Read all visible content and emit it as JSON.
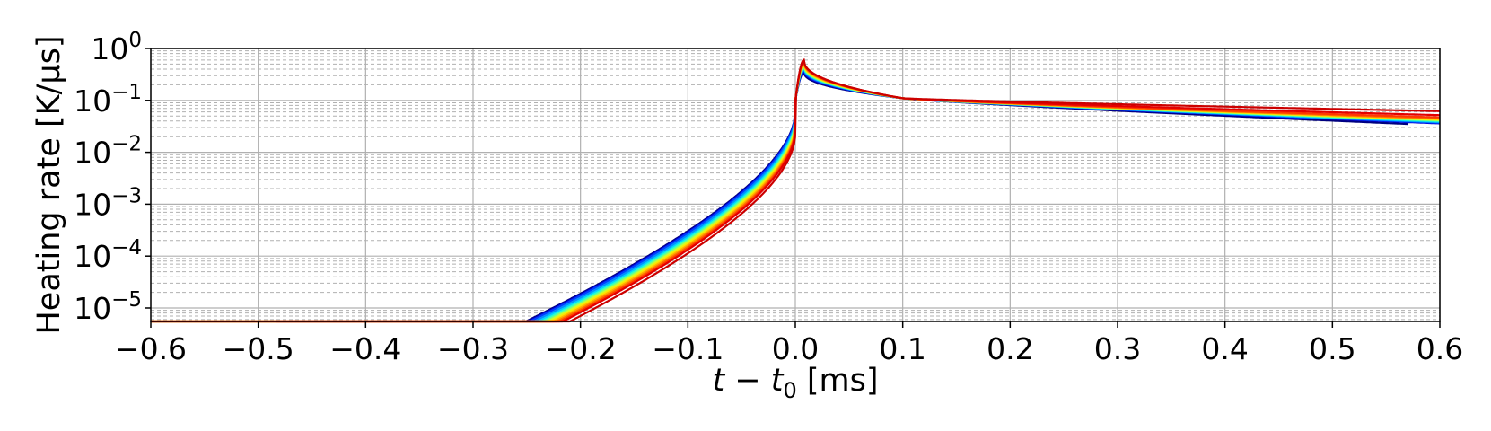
{
  "chart_data": {
    "type": "line",
    "xlabel": {
      "parts": [
        {
          "text": "t",
          "italic": true,
          "sub": false
        },
        {
          "text": " − ",
          "italic": false,
          "sub": false
        },
        {
          "text": "t",
          "italic": true,
          "sub": false
        },
        {
          "text": "0",
          "italic": false,
          "sub": true
        },
        {
          "text": " [ms]",
          "italic": false,
          "sub": false
        }
      ]
    },
    "ylabel": "Heating rate [K/μs]",
    "xlim": [
      -0.6,
      0.6
    ],
    "ylim": [
      5.5e-06,
      1.0
    ],
    "y_scale": "log",
    "grid": true,
    "minor_grid": "dashed",
    "xticks": [
      -0.6,
      -0.5,
      -0.4,
      -0.3,
      -0.2,
      -0.1,
      0.0,
      0.1,
      0.2,
      0.3,
      0.4,
      0.5,
      0.6
    ],
    "xtick_labels": [
      "−0.6",
      "−0.5",
      "−0.4",
      "−0.3",
      "−0.2",
      "−0.1",
      "0.0",
      "0.1",
      "0.2",
      "0.3",
      "0.4",
      "0.5",
      "0.6"
    ],
    "yticks": [
      {
        "value": 1,
        "base": "10",
        "exp": "0"
      },
      {
        "value": 0.1,
        "base": "10",
        "exp": "−1"
      },
      {
        "value": 0.01,
        "base": "10",
        "exp": "−2"
      },
      {
        "value": 0.001,
        "base": "10",
        "exp": "−3"
      },
      {
        "value": 0.0001,
        "base": "10",
        "exp": "−4"
      },
      {
        "value": 1e-05,
        "base": "10",
        "exp": "−5"
      }
    ],
    "series": [
      {
        "color": "#00007f",
        "x_start": -0.6,
        "x_end": 0.57,
        "pre_offset": 0.1,
        "peak": 0.35,
        "tail_end": 0.033
      },
      {
        "color": "#0000d0",
        "x_start": -0.6,
        "x_end": 0.6,
        "pre_offset": 0.08,
        "peak": 0.38,
        "tail_end": 0.036
      },
      {
        "color": "#0040ff",
        "x_start": -0.6,
        "x_end": 0.6,
        "pre_offset": 0.06,
        "peak": 0.4,
        "tail_end": 0.037
      },
      {
        "color": "#0090ff",
        "x_start": -0.6,
        "x_end": 0.6,
        "pre_offset": 0.02,
        "peak": 0.42,
        "tail_end": 0.038
      },
      {
        "color": "#00d4ff",
        "x_start": -0.6,
        "x_end": 0.6,
        "pre_offset": -0.02,
        "peak": 0.44,
        "tail_end": 0.039
      },
      {
        "color": "#29ffce",
        "x_start": -0.6,
        "x_end": 0.6,
        "pre_offset": -0.05,
        "peak": 0.45,
        "tail_end": 0.04
      },
      {
        "color": "#7dff7a",
        "x_start": -0.6,
        "x_end": 0.6,
        "pre_offset": -0.08,
        "peak": 0.47,
        "tail_end": 0.041
      },
      {
        "color": "#ceff29",
        "x_start": -0.6,
        "x_end": 0.6,
        "pre_offset": -0.11,
        "peak": 0.49,
        "tail_end": 0.042
      },
      {
        "color": "#ffe500",
        "x_start": -0.6,
        "x_end": 0.6,
        "pre_offset": -0.14,
        "peak": 0.51,
        "tail_end": 0.043
      },
      {
        "color": "#ffb000",
        "x_start": -0.6,
        "x_end": 0.6,
        "pre_offset": -0.17,
        "peak": 0.53,
        "tail_end": 0.044
      },
      {
        "color": "#ff7300",
        "x_start": -0.6,
        "x_end": 0.6,
        "pre_offset": -0.2,
        "peak": 0.55,
        "tail_end": 0.045
      },
      {
        "color": "#ff3800",
        "x_start": -0.6,
        "x_end": 0.6,
        "pre_offset": -0.23,
        "peak": 0.57,
        "tail_end": 0.047
      },
      {
        "color": "#e40000",
        "x_start": -0.6,
        "x_end": 0.6,
        "pre_offset": -0.26,
        "peak": 0.59,
        "tail_end": 0.052
      },
      {
        "color": "#cc0000",
        "x_start": -0.483,
        "x_end": 0.6,
        "pre_offset": -0.33,
        "peak": 0.6,
        "tail_end": 0.062
      }
    ]
  }
}
